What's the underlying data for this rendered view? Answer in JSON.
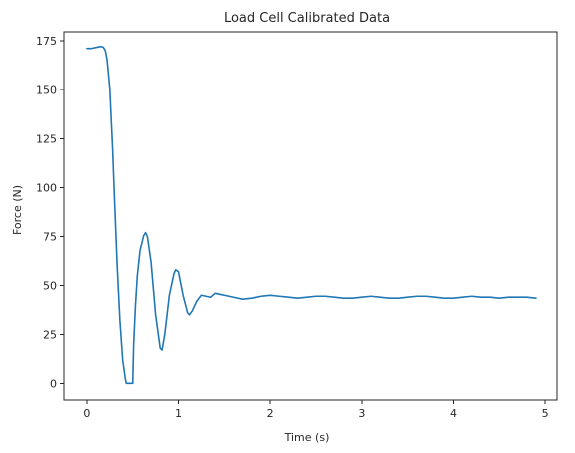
{
  "chart_data": {
    "type": "line",
    "title": "Load Cell Calibrated Data",
    "xlabel": "Time (s)",
    "ylabel": "Force (N)",
    "xlim": [
      -0.25,
      5.13
    ],
    "ylim": [
      -8.5,
      179.5
    ],
    "xticks": [
      0,
      1,
      2,
      3,
      4,
      5
    ],
    "yticks": [
      0,
      25,
      50,
      75,
      100,
      125,
      150,
      175
    ],
    "grid": false,
    "legend": "none",
    "colors": {
      "series": "#1f77b4"
    },
    "series": [
      {
        "x": [
          0.0,
          0.05,
          0.1,
          0.15,
          0.18,
          0.2,
          0.22,
          0.25,
          0.28,
          0.3,
          0.33,
          0.36,
          0.39,
          0.42,
          0.43,
          0.44,
          0.46,
          0.48,
          0.5,
          0.51,
          0.52,
          0.53,
          0.55,
          0.58,
          0.62,
          0.64,
          0.66,
          0.7,
          0.75,
          0.8,
          0.82,
          0.85,
          0.9,
          0.95,
          0.97,
          1.0,
          1.05,
          1.1,
          1.12,
          1.15,
          1.2,
          1.25,
          1.3,
          1.35,
          1.4,
          1.45,
          1.5,
          1.6,
          1.7,
          1.8,
          1.9,
          2.0,
          2.1,
          2.2,
          2.3,
          2.4,
          2.5,
          2.6,
          2.7,
          2.8,
          2.9,
          3.0,
          3.1,
          3.2,
          3.3,
          3.4,
          3.5,
          3.6,
          3.7,
          3.8,
          3.9,
          4.0,
          4.1,
          4.2,
          4.3,
          4.4,
          4.5,
          4.6,
          4.7,
          4.8,
          4.9
        ],
        "y": [
          171,
          171,
          171.5,
          172,
          171.5,
          170,
          165,
          150,
          120,
          95,
          60,
          32,
          12,
          2,
          0,
          0,
          0,
          0,
          0,
          20,
          30,
          40,
          55,
          68,
          75.5,
          77,
          75,
          62,
          35,
          18,
          17,
          25,
          45,
          56,
          58,
          57,
          45,
          36,
          35,
          37,
          42,
          45,
          44.5,
          44,
          46,
          45.5,
          45,
          44,
          43,
          43.5,
          44.5,
          45,
          44.5,
          44,
          43.5,
          44,
          44.5,
          44.5,
          44,
          43.5,
          43.5,
          44,
          44.5,
          44,
          43.5,
          43.5,
          44,
          44.5,
          44.5,
          44,
          43.5,
          43.5,
          44,
          44.5,
          44,
          44,
          43.5,
          44,
          44,
          44,
          43.5
        ]
      }
    ]
  }
}
